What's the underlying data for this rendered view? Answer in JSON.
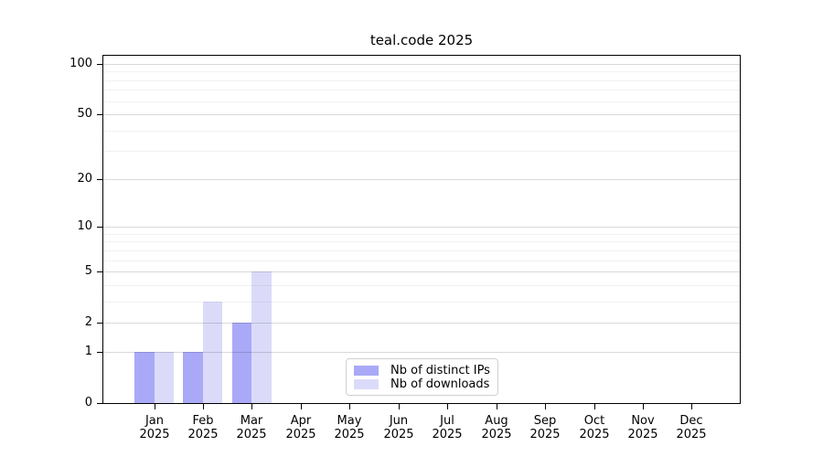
{
  "chart_data": {
    "type": "bar",
    "title": "teal.code 2025",
    "categories": [
      "Jan",
      "Feb",
      "Mar",
      "Apr",
      "May",
      "Jun",
      "Jul",
      "Aug",
      "Sep",
      "Oct",
      "Nov",
      "Dec"
    ],
    "category_year": "2025",
    "series": [
      {
        "name": "Nb of distinct IPs",
        "color": "#a9a9f7",
        "values": [
          1,
          1,
          2,
          0,
          0,
          0,
          0,
          0,
          0,
          0,
          0,
          0
        ]
      },
      {
        "name": "Nb of downloads",
        "color": "#dbdbf9",
        "values": [
          1,
          3,
          5,
          0,
          0,
          0,
          0,
          0,
          0,
          0,
          0,
          0
        ]
      }
    ],
    "xlabel": "",
    "ylabel": "",
    "y_scale": "log10(1+v)",
    "ylim": [
      0,
      112
    ],
    "y_major_ticks": [
      0,
      1,
      2,
      5,
      10,
      20,
      50,
      100
    ],
    "y_minor_ticks": [
      3,
      4,
      6,
      7,
      8,
      9,
      30,
      40,
      60,
      70,
      80,
      90
    ],
    "grid": true,
    "legend_position": "lower center"
  },
  "colors": {
    "background": "#ffffff",
    "spine": "#000000",
    "text": "#000000",
    "legend_border": "#d0d0d0"
  }
}
